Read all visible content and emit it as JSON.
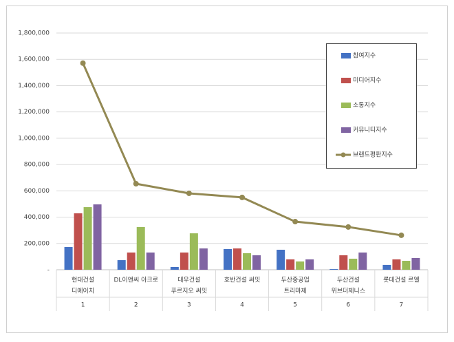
{
  "chart_data": {
    "type": "bar",
    "categories": [
      [
        "현대건설",
        "디에이치"
      ],
      [
        "DL이앤씨 아크로"
      ],
      [
        "대우건설",
        "푸르지오 써밋"
      ],
      [
        "호반건설 써밋"
      ],
      [
        "두산중공업",
        "트리마제"
      ],
      [
        "두산건설",
        "위브더제니스"
      ],
      [
        "롯데건설 르엘"
      ]
    ],
    "ranks": [
      1,
      2,
      3,
      4,
      5,
      6,
      7
    ],
    "series": [
      {
        "name": "참여지수",
        "type": "bar",
        "color": "#4472c4",
        "values": [
          173000,
          73000,
          21000,
          157000,
          152000,
          5000,
          37000
        ]
      },
      {
        "name": "미디어지수",
        "type": "bar",
        "color": "#c0504d",
        "values": [
          429000,
          131000,
          131000,
          162000,
          79000,
          110000,
          79000
        ]
      },
      {
        "name": "소통지수",
        "type": "bar",
        "color": "#9bbb59",
        "values": [
          476000,
          325000,
          277000,
          126000,
          63000,
          84000,
          68000
        ]
      },
      {
        "name": "커뮤니티지수",
        "type": "bar",
        "color": "#8064a2",
        "values": [
          497000,
          131000,
          162000,
          110000,
          79000,
          131000,
          89000
        ]
      },
      {
        "name": "브랜드평판지수",
        "type": "line",
        "color": "#938953",
        "values": [
          1571000,
          654000,
          581000,
          550000,
          366000,
          325000,
          262000
        ]
      }
    ],
    "ylim": [
      0,
      1800000
    ],
    "yticks": [
      {
        "value": 0,
        "label": "-"
      },
      {
        "value": 200000,
        "label": "200,000"
      },
      {
        "value": 400000,
        "label": "400,000"
      },
      {
        "value": 600000,
        "label": "600,000"
      },
      {
        "value": 800000,
        "label": "800,000"
      },
      {
        "value": 1000000,
        "label": "1,000,000"
      },
      {
        "value": 1200000,
        "label": "1,200,000"
      },
      {
        "value": 1400000,
        "label": "1,400,000"
      },
      {
        "value": 1600000,
        "label": "1,600,000"
      },
      {
        "value": 1800000,
        "label": "1,800,000"
      }
    ],
    "grid": true,
    "legend": "upper right"
  }
}
